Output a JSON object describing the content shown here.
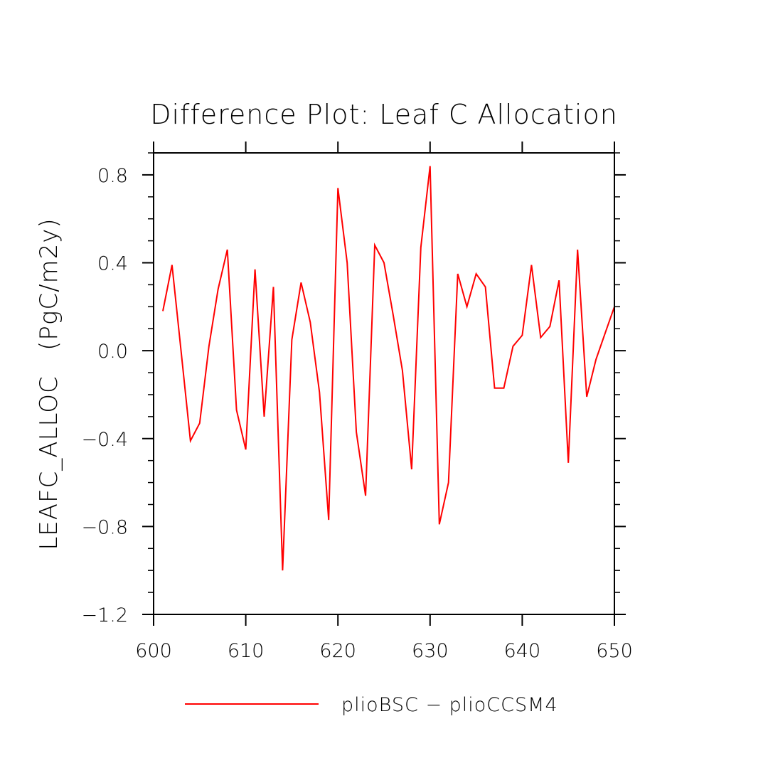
{
  "chart_data": {
    "type": "line",
    "title": "Difference Plot: Leaf C Allocation",
    "xlabel": "",
    "ylabel": "LEAFC_ALLOC   (PgC/m2y)",
    "xlim": [
      600,
      650
    ],
    "ylim": [
      -1.2,
      0.9
    ],
    "xticks": [
      600,
      610,
      620,
      630,
      640,
      650
    ],
    "xtick_labels": [
      "600",
      "610",
      "620",
      "630",
      "640",
      "650"
    ],
    "yticks": [
      -1.2,
      -0.8,
      -0.4,
      0.0,
      0.4,
      0.8
    ],
    "ytick_labels": [
      "−1.2",
      "−0.8",
      "−0.4",
      "0.0",
      "0.4",
      "0.8"
    ],
    "grid": false,
    "legend_position": "bottom-center",
    "series": [
      {
        "name": "plioBSC − plioCCSM4",
        "color": "#ff0000",
        "x": [
          601,
          602,
          603,
          604,
          605,
          606,
          607,
          608,
          609,
          610,
          611,
          612,
          613,
          614,
          615,
          616,
          617,
          618,
          619,
          620,
          621,
          622,
          623,
          624,
          625,
          626,
          627,
          628,
          629,
          630,
          631,
          632,
          633,
          634,
          635,
          636,
          637,
          638,
          639,
          640,
          641,
          642,
          643,
          644,
          645,
          646,
          647,
          648,
          649,
          650
        ],
        "y": [
          0.18,
          0.39,
          -0.01,
          -0.41,
          -0.33,
          0.02,
          0.28,
          0.46,
          -0.27,
          -0.45,
          0.37,
          -0.3,
          0.29,
          -1.0,
          0.05,
          0.31,
          0.13,
          -0.19,
          -0.77,
          0.74,
          0.4,
          -0.37,
          -0.66,
          0.48,
          0.4,
          0.16,
          -0.09,
          -0.54,
          0.47,
          0.84,
          -0.79,
          -0.6,
          0.35,
          0.2,
          0.35,
          0.29,
          -0.17,
          -0.17,
          0.02,
          0.07,
          0.39,
          0.06,
          0.11,
          0.32,
          -0.51,
          0.46,
          -0.21,
          -0.04,
          0.08,
          0.2
        ]
      }
    ]
  }
}
